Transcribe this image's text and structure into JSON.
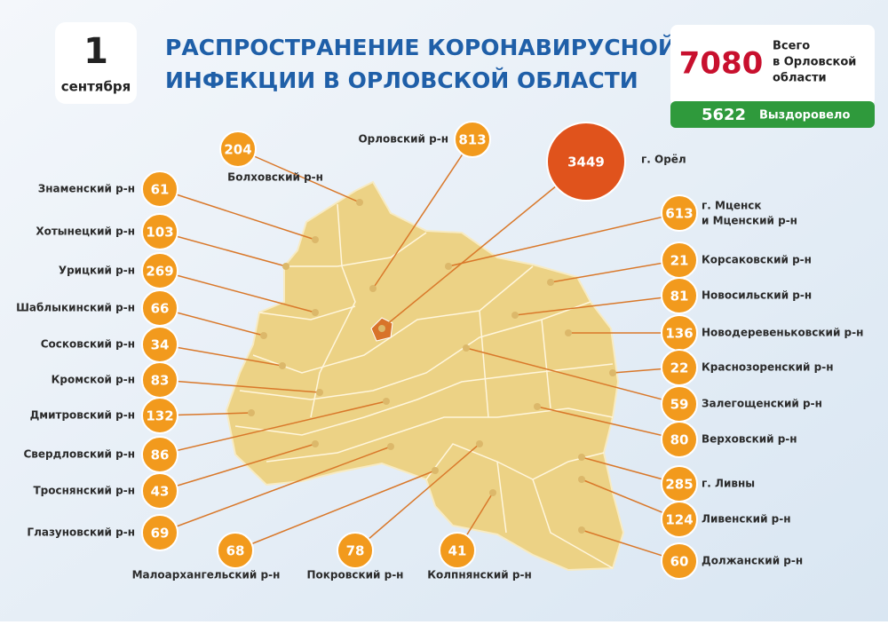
{
  "header": {
    "day": "1",
    "month": "сентября",
    "title_lines": [
      "РАСПРОСТРАНЕНИЕ КОРОНАВИРУСНОЙ",
      "ИНФЕКЦИИ В ОРЛОВСКОЙ ОБЛАСТИ"
    ]
  },
  "totals": {
    "total": 7080,
    "total_label_lines": [
      "Всего",
      "в Орловской",
      "области"
    ],
    "recovered": 5622,
    "recovered_label": "Выздоровело"
  },
  "districts": [
    {
      "name": "Знаменский р-н",
      "value": 61
    },
    {
      "name": "Хотынецкий р-н",
      "value": 103
    },
    {
      "name": "Урицкий р-н",
      "value": 269
    },
    {
      "name": "Шаблыкинский р-н",
      "value": 66
    },
    {
      "name": "Сосковский р-н",
      "value": 34
    },
    {
      "name": "Кромской р-н",
      "value": 83
    },
    {
      "name": "Дмитровский р-н",
      "value": 132
    },
    {
      "name": "Свердловский р-н",
      "value": 86
    },
    {
      "name": "Троснянский р-н",
      "value": 43
    },
    {
      "name": "Глазуновский р-н",
      "value": 69
    },
    {
      "name": "Малоархангельский р-н",
      "value": 68
    },
    {
      "name": "Покровский р-н",
      "value": 78
    },
    {
      "name": "Колпнянский р-н",
      "value": 41
    },
    {
      "name": "Болховский р-н",
      "value": 204
    },
    {
      "name": "Орловский р-н",
      "value": 813
    },
    {
      "name": "г. Орёл",
      "value": 3449
    },
    {
      "name_lines": [
        "г. Мценск",
        "и Мценский р-н"
      ],
      "value": 613
    },
    {
      "name": "Корсаковский р-н",
      "value": 21
    },
    {
      "name": "Новосильский р-н",
      "value": 81
    },
    {
      "name": "Новодеревеньковский р-н",
      "value": 136
    },
    {
      "name": "Краснозоренский р-н",
      "value": 22
    },
    {
      "name": "Залегощенский р-н",
      "value": 59
    },
    {
      "name": "Верховский р-н",
      "value": 80
    },
    {
      "name": "г. Ливны",
      "value": 285
    },
    {
      "name": "Ливенский р-н",
      "value": 124
    },
    {
      "name": "Должанский р-н",
      "value": 60
    }
  ]
}
